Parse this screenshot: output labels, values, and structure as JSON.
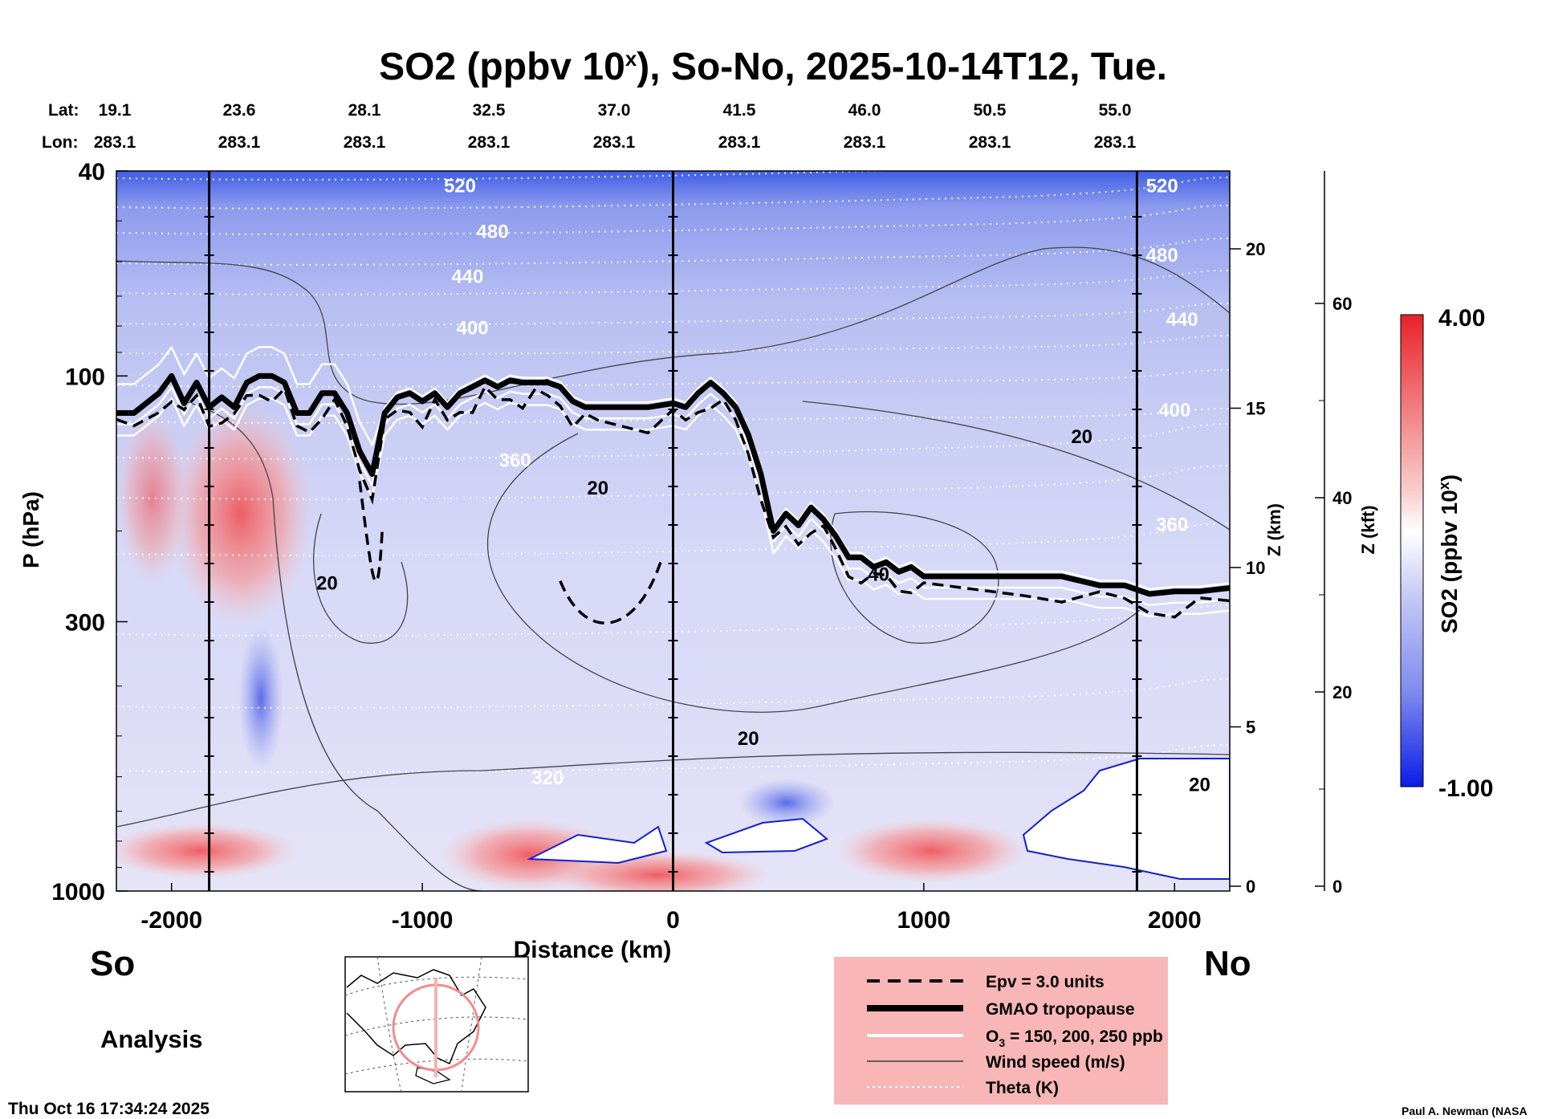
{
  "title": "SO2 (ppbv 10",
  "title_sup": "x",
  "title_rest": "), So-No, 2025-10-14T12, Tue.",
  "lat_label": "Lat:",
  "lon_label": "Lon:",
  "lat_ticks": [
    "19.1",
    "23.6",
    "28.1",
    "32.5",
    "37.0",
    "41.5",
    "46.0",
    "50.5",
    "55.0"
  ],
  "lon_ticks": [
    "283.1",
    "283.1",
    "283.1",
    "283.1",
    "283.1",
    "283.1",
    "283.1",
    "283.1",
    "283.1"
  ],
  "side_left": "So",
  "side_right": "No",
  "run_label": "Analysis",
  "timestamp": "Thu Oct 16 17:34:24 2025",
  "credit": "Paul A. Newman (NASA",
  "legend": {
    "items": [
      {
        "label": "Epv = 3.0 units",
        "style": "dashed"
      },
      {
        "label": "GMAO tropopause",
        "style": "thick"
      },
      {
        "label": "O",
        "sub": "3",
        "label_rest": " = 150, 200, 250 ppb",
        "style": "white"
      },
      {
        "label": "Wind speed (m/s)",
        "style": "thin"
      },
      {
        "label": "Theta (K)",
        "style": "dotted"
      }
    ]
  },
  "chart_data": {
    "type": "heatmap",
    "title": "SO2 (ppbv 10^x), So-No, 2025-10-14T12, Tue.",
    "xlabel": "Distance (km)",
    "ylabel": "P (hPa)",
    "y2label": "Z (km)",
    "y3label": "Z (kft)",
    "colorbar_label": "SO2 (ppbv 10",
    "colorbar_label_sup": "x",
    "colorbar_label_rest": ")",
    "xlim": [
      -2220,
      2220
    ],
    "ylim": [
      1000,
      40
    ],
    "y_scale": "log",
    "x_ticks": [
      -2000,
      -1000,
      0,
      1000,
      2000
    ],
    "y_ticks": [
      40,
      100,
      300,
      1000
    ],
    "z_km_ticks": [
      0,
      5,
      10,
      15,
      20
    ],
    "z_kft_ticks": [
      0,
      20,
      40,
      60
    ],
    "colorbar_range": [
      -1.0,
      4.0
    ],
    "colorbar_labels": [
      "4.00",
      "-1.00"
    ],
    "section_markers_km": [
      -1850,
      0,
      1850
    ],
    "theta_labels": [
      {
        "text": "520",
        "x": -850,
        "p": 44
      },
      {
        "text": "480",
        "x": -720,
        "p": 54
      },
      {
        "text": "440",
        "x": -820,
        "p": 66
      },
      {
        "text": "400",
        "x": -800,
        "p": 83
      },
      {
        "text": "360",
        "x": -630,
        "p": 150
      },
      {
        "text": "320",
        "x": -500,
        "p": 620
      },
      {
        "text": "520",
        "x": 1950,
        "p": 44
      },
      {
        "text": "480",
        "x": 1950,
        "p": 60
      },
      {
        "text": "440",
        "x": 2030,
        "p": 80
      },
      {
        "text": "400",
        "x": 2000,
        "p": 120
      },
      {
        "text": "360",
        "x": 1990,
        "p": 200
      }
    ],
    "wind_labels": [
      {
        "text": "20",
        "x": 1630,
        "p": 135
      },
      {
        "text": "20",
        "x": -300,
        "p": 170
      },
      {
        "text": "20",
        "x": -1380,
        "p": 260
      },
      {
        "text": "40",
        "x": 820,
        "p": 250
      },
      {
        "text": "20",
        "x": 300,
        "p": 520
      },
      {
        "text": "20",
        "x": 2100,
        "p": 640
      }
    ],
    "tropopause": {
      "x": [
        -2220,
        -2150,
        -2050,
        -2000,
        -1950,
        -1900,
        -1850,
        -1800,
        -1750,
        -1700,
        -1650,
        -1600,
        -1550,
        -1500,
        -1450,
        -1400,
        -1350,
        -1300,
        -1250,
        -1200,
        -1150,
        -1100,
        -1050,
        -1000,
        -950,
        -900,
        -850,
        -800,
        -750,
        -700,
        -650,
        -600,
        -550,
        -500,
        -450,
        -400,
        -350,
        -300,
        -200,
        -100,
        0,
        50,
        100,
        150,
        200,
        250,
        300,
        350,
        400,
        450,
        500,
        550,
        600,
        650,
        700,
        750,
        800,
        850,
        900,
        950,
        1000,
        1200,
        1400,
        1550,
        1700,
        1800,
        1900,
        2000,
        2100,
        2220
      ],
      "p": [
        118,
        118,
        108,
        100,
        113,
        103,
        115,
        110,
        115,
        103,
        100,
        100,
        103,
        118,
        118,
        108,
        108,
        118,
        140,
        155,
        118,
        110,
        108,
        112,
        108,
        115,
        108,
        105,
        102,
        105,
        102,
        103,
        103,
        103,
        105,
        112,
        115,
        115,
        115,
        115,
        113,
        115,
        108,
        103,
        108,
        115,
        130,
        155,
        200,
        185,
        195,
        180,
        190,
        205,
        225,
        225,
        235,
        230,
        240,
        235,
        245,
        245,
        245,
        245,
        255,
        255,
        265,
        262,
        262,
        258
      ]
    },
    "colorbar_position": "right"
  }
}
